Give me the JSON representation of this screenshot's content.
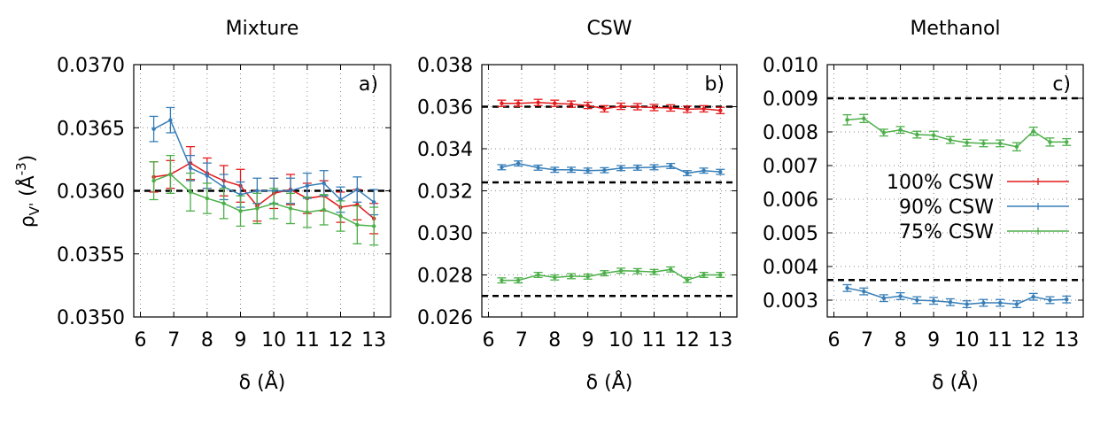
{
  "y_axis_label": {
    "main": "ρ",
    "sub": "V'",
    "unit_open": " (Å",
    "unit_exp": "-3",
    "unit_close": ")"
  },
  "legend": [
    "100% CSW",
    "90% CSW",
    "75% CSW"
  ],
  "colors": {
    "red": "#e41a1c",
    "blue": "#377eb8",
    "green": "#4daf4a",
    "reference": "#000000",
    "grid": "#888888"
  },
  "chart_data": [
    {
      "type": "line",
      "title": "Mixture",
      "panel_label": "a)",
      "xlabel": "δ (Å)",
      "ylabel": "ρV' (Å-3)",
      "xlim": [
        5.8,
        13.5
      ],
      "ylim": [
        0.035,
        0.037
      ],
      "x_ticks": [
        6,
        7,
        8,
        9,
        10,
        11,
        12,
        13
      ],
      "y_ticks": [
        0.035,
        0.0355,
        0.036,
        0.0365,
        0.037
      ],
      "y_tick_labels": [
        "0.0350",
        "0.0355",
        "0.0360",
        "0.0365",
        "0.0370"
      ],
      "reference_lines": [
        0.036
      ],
      "x": [
        6.4,
        6.9,
        7.5,
        8.0,
        8.5,
        9.0,
        9.5,
        10.0,
        10.5,
        11.0,
        11.5,
        12.0,
        12.5,
        13.0
      ],
      "series": [
        {
          "name": "100% CSW",
          "color": "#e41a1c",
          "values": [
            0.03611,
            0.03613,
            0.03622,
            0.03614,
            0.03608,
            0.03604,
            0.03588,
            0.03598,
            0.03601,
            0.03594,
            0.03596,
            0.03587,
            0.03589,
            0.03578
          ],
          "errors": [
            0.00012,
            0.00011,
            0.00013,
            0.00012,
            0.00012,
            0.00013,
            0.00012,
            0.00012,
            0.00012,
            0.00012,
            0.00012,
            0.00012,
            0.00012,
            0.00012
          ]
        },
        {
          "name": "90% CSW",
          "color": "#377eb8",
          "values": [
            0.03649,
            0.03656,
            0.03618,
            0.03612,
            0.03603,
            0.03597,
            0.036,
            0.036,
            0.036,
            0.03604,
            0.03606,
            0.03593,
            0.03601,
            0.03591
          ],
          "errors": [
            0.0001,
            0.0001,
            0.0001,
            0.0001,
            0.0001,
            0.0001,
            0.0001,
            0.0001,
            0.0001,
            0.0001,
            0.0001,
            0.0001,
            0.0001,
            0.0001
          ]
        },
        {
          "name": "75% CSW",
          "color": "#4daf4a",
          "values": [
            0.03608,
            0.03613,
            0.03599,
            0.03594,
            0.0359,
            0.03584,
            0.03586,
            0.0359,
            0.03586,
            0.03583,
            0.03585,
            0.0358,
            0.03573,
            0.03572
          ],
          "errors": [
            0.00015,
            0.00015,
            0.00015,
            0.00012,
            0.00012,
            0.00012,
            0.00012,
            0.00012,
            0.00012,
            0.00012,
            0.00012,
            0.00012,
            0.00015,
            0.00015
          ]
        }
      ]
    },
    {
      "type": "line",
      "title": "CSW",
      "panel_label": "b)",
      "xlabel": "δ (Å)",
      "xlim": [
        5.8,
        13.5
      ],
      "ylim": [
        0.026,
        0.038
      ],
      "x_ticks": [
        6,
        7,
        8,
        9,
        10,
        11,
        12,
        13
      ],
      "y_ticks": [
        0.026,
        0.028,
        0.03,
        0.032,
        0.034,
        0.036,
        0.038
      ],
      "y_tick_labels": [
        "0.026",
        "0.028",
        "0.030",
        "0.032",
        "0.034",
        "0.036",
        "0.038"
      ],
      "reference_lines": [
        0.036,
        0.0324,
        0.027
      ],
      "x": [
        6.4,
        6.9,
        7.5,
        8.0,
        8.5,
        9.0,
        9.5,
        10.0,
        10.5,
        11.0,
        11.5,
        12.0,
        12.5,
        13.0
      ],
      "series": [
        {
          "name": "100% CSW",
          "color": "#e41a1c",
          "values": [
            0.03616,
            0.03616,
            0.0362,
            0.03616,
            0.03612,
            0.03606,
            0.0359,
            0.03602,
            0.036,
            0.03596,
            0.03594,
            0.03588,
            0.0359,
            0.03582
          ],
          "errors": [
            0.00015,
            0.00015,
            0.00015,
            0.00015,
            0.00015,
            0.00015,
            0.00015,
            0.00015,
            0.00015,
            0.00015,
            0.00015,
            0.00015,
            0.00015,
            0.00015
          ]
        },
        {
          "name": "90% CSW",
          "color": "#377eb8",
          "values": [
            0.03312,
            0.0333,
            0.0331,
            0.033,
            0.033,
            0.03296,
            0.03298,
            0.03308,
            0.0331,
            0.03312,
            0.03318,
            0.03284,
            0.03296,
            0.0329
          ],
          "errors": [
            0.00012,
            0.00012,
            0.00012,
            0.00012,
            0.00012,
            0.00012,
            0.00012,
            0.00012,
            0.00012,
            0.00012,
            0.00012,
            0.00012,
            0.00012,
            0.00012
          ]
        },
        {
          "name": "75% CSW",
          "color": "#4daf4a",
          "values": [
            0.02774,
            0.02774,
            0.028,
            0.02788,
            0.02794,
            0.02792,
            0.02808,
            0.0282,
            0.02818,
            0.02814,
            0.02826,
            0.02776,
            0.028,
            0.028
          ],
          "errors": [
            0.00012,
            0.00012,
            0.00012,
            0.00012,
            0.00012,
            0.00012,
            0.00012,
            0.00012,
            0.00012,
            0.00012,
            0.00012,
            0.00012,
            0.00012,
            0.00012
          ]
        }
      ]
    },
    {
      "type": "line",
      "title": "Methanol",
      "panel_label": "c)",
      "xlabel": "δ (Å)",
      "xlim": [
        5.8,
        13.5
      ],
      "ylim": [
        0.0025,
        0.01
      ],
      "x_ticks": [
        6,
        7,
        8,
        9,
        10,
        11,
        12,
        13
      ],
      "y_ticks": [
        0.003,
        0.004,
        0.005,
        0.006,
        0.007,
        0.008,
        0.009,
        0.01
      ],
      "y_tick_labels": [
        "0.003",
        "0.004",
        "0.005",
        "0.006",
        "0.007",
        "0.008",
        "0.009",
        "0.010"
      ],
      "reference_lines": [
        0.009,
        0.0036
      ],
      "x": [
        6.4,
        6.9,
        7.5,
        8.0,
        8.5,
        9.0,
        9.5,
        10.0,
        10.5,
        11.0,
        11.5,
        12.0,
        12.5,
        13.0
      ],
      "series": [
        {
          "name": "90% CSW",
          "color": "#377eb8",
          "values": [
            0.00336,
            0.00326,
            0.00306,
            0.00312,
            0.003,
            0.00298,
            0.00294,
            0.00288,
            0.00292,
            0.00292,
            0.00288,
            0.0031,
            0.003,
            0.00302
          ],
          "errors": [
            0.0001,
            0.0001,
            0.0001,
            0.0001,
            0.0001,
            0.0001,
            0.0001,
            0.0001,
            0.0001,
            0.0001,
            0.0001,
            0.0001,
            0.0001,
            0.0001
          ]
        },
        {
          "name": "75% CSW",
          "color": "#4daf4a",
          "values": [
            0.00836,
            0.0084,
            0.00798,
            0.00806,
            0.00792,
            0.0079,
            0.00776,
            0.00768,
            0.00766,
            0.00766,
            0.00756,
            0.00802,
            0.0077,
            0.0077
          ],
          "errors": [
            0.00015,
            0.00012,
            0.0001,
            0.0001,
            0.0001,
            0.00012,
            0.0001,
            0.0001,
            0.0001,
            0.0001,
            0.00012,
            0.00012,
            0.00012,
            0.0001
          ]
        }
      ]
    }
  ]
}
